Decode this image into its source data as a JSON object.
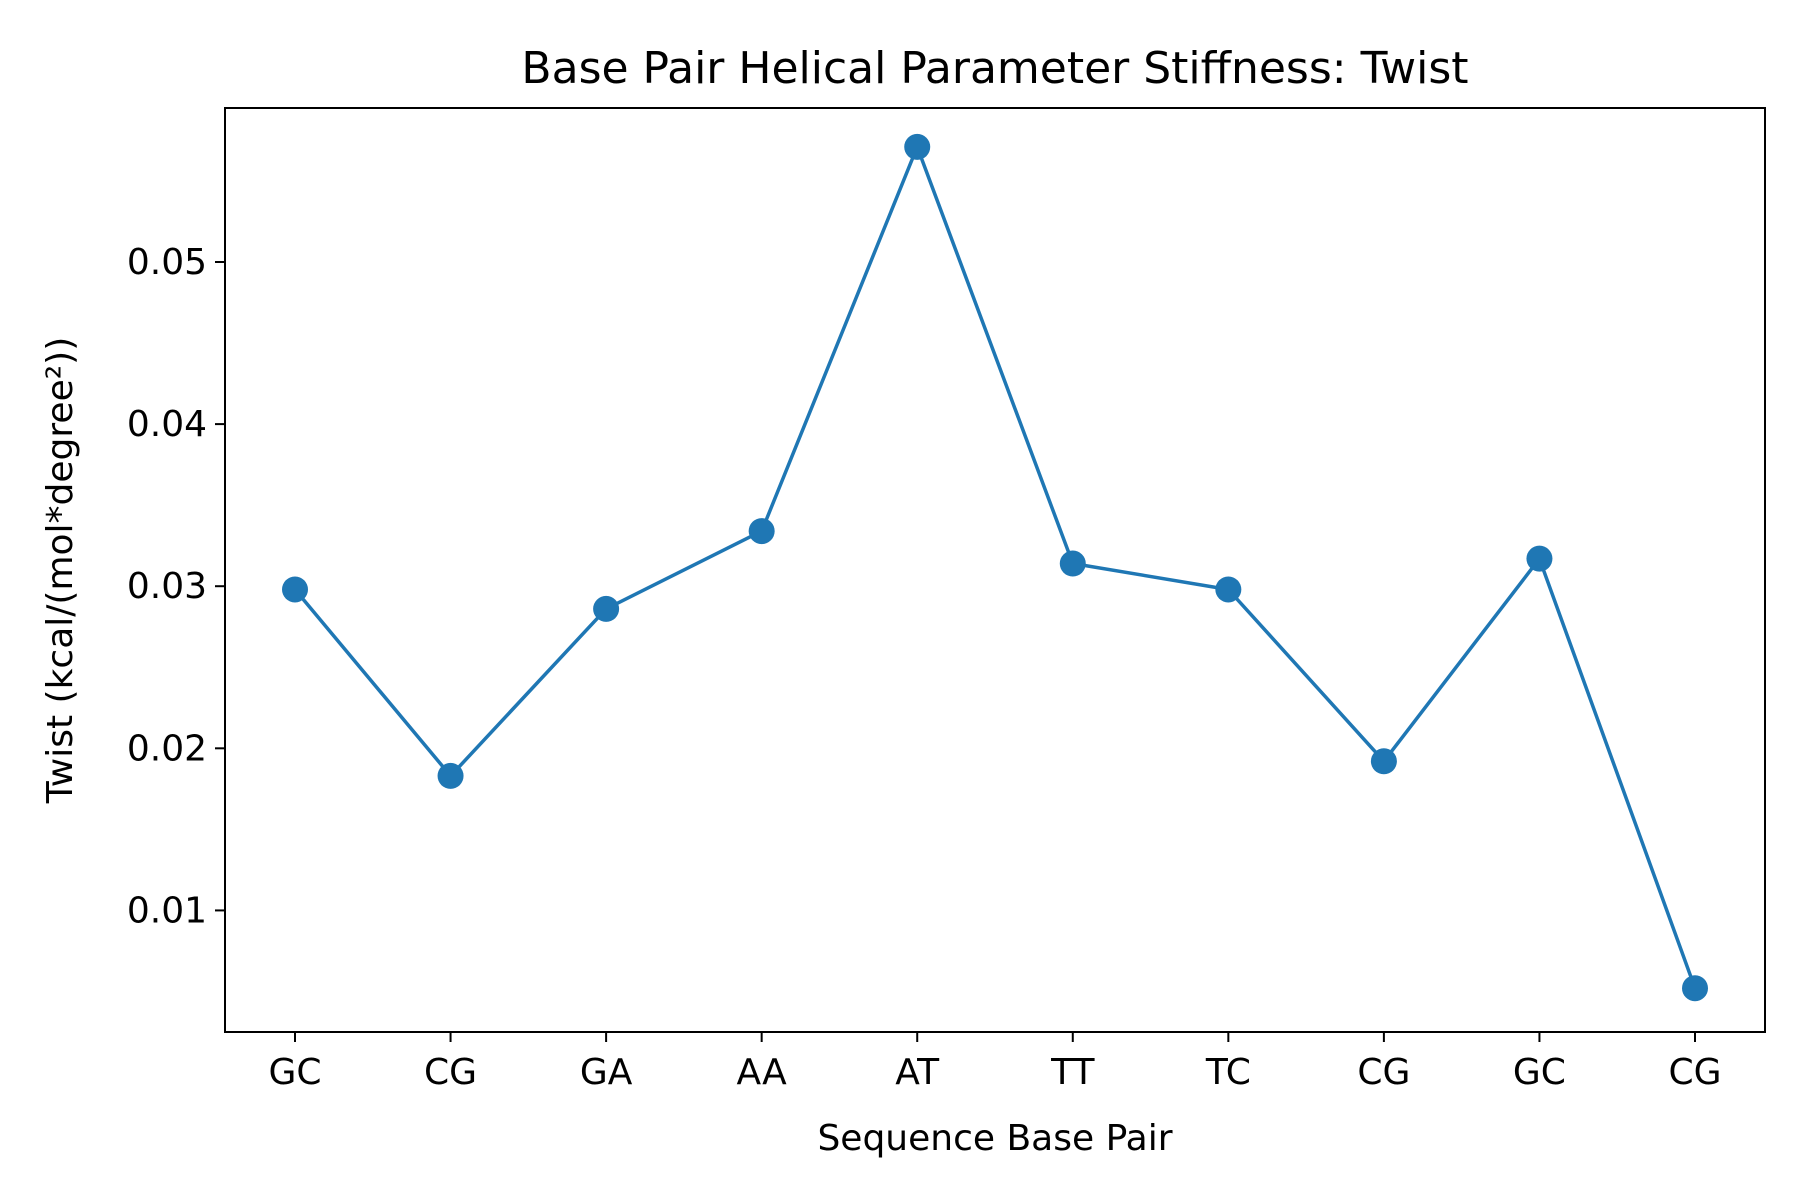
{
  "chart_data": {
    "type": "line",
    "title": "Base Pair Helical Parameter Stiffness: Twist",
    "xlabel": "Sequence Base Pair",
    "ylabel": "Twist (kcal/(mol*degree²))",
    "categories": [
      "GC",
      "CG",
      "GA",
      "AA",
      "AT",
      "TT",
      "TC",
      "CG",
      "GC",
      "CG"
    ],
    "series": [
      {
        "values": [
          0.0298,
          0.0183,
          0.0286,
          0.0334,
          0.0571,
          0.0314,
          0.0298,
          0.0192,
          0.0317,
          0.0052
        ],
        "color": "#1f77b4",
        "marker": "circle"
      }
    ],
    "ylim": [
      0.0025,
      0.0595
    ],
    "yticks": [
      0.01,
      0.02,
      0.03,
      0.04,
      0.05
    ],
    "ytick_labels": [
      "0.01",
      "0.02",
      "0.03",
      "0.04",
      "0.05"
    ],
    "grid": false,
    "legend": "none"
  }
}
